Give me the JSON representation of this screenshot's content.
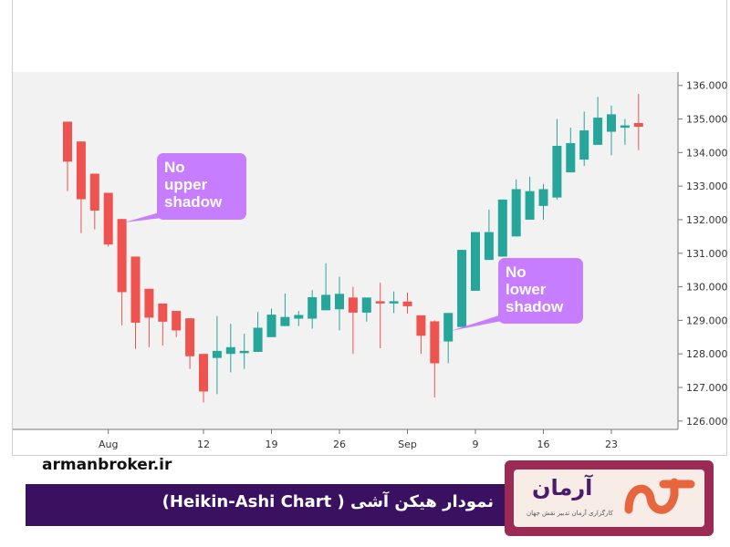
{
  "chart_data": {
    "type": "candlestick",
    "subtype": "heikin-ashi",
    "x_tick_labels": [
      "Aug",
      "12",
      "19",
      "26",
      "Sep",
      "9",
      "16",
      "23"
    ],
    "y_ticks": [
      "126.000",
      "127.000",
      "128.000",
      "129.000",
      "130.000",
      "131.000",
      "132.000",
      "133.000",
      "134.000",
      "135.000",
      "136.000"
    ],
    "ylim": [
      125.75,
      136.4
    ],
    "grid": false,
    "colors": {
      "up": "#26a69a",
      "down": "#ef5350",
      "callout": "#c77dff",
      "plot_background": "#f2f2f2"
    },
    "candles": [
      {
        "open": 134.92,
        "close": 133.73,
        "high": 134.92,
        "low": 132.85,
        "dir": "down"
      },
      {
        "open": 134.33,
        "close": 132.61,
        "high": 134.33,
        "low": 131.6,
        "dir": "down"
      },
      {
        "open": 133.37,
        "close": 132.27,
        "high": 133.37,
        "low": 131.71,
        "dir": "down"
      },
      {
        "open": 132.8,
        "close": 131.26,
        "high": 132.8,
        "low": 131.2,
        "dir": "down"
      },
      {
        "open": 132.02,
        "close": 129.84,
        "high": 132.02,
        "low": 128.85,
        "dir": "down"
      },
      {
        "open": 130.9,
        "close": 128.93,
        "high": 130.9,
        "low": 128.15,
        "dir": "down"
      },
      {
        "open": 129.94,
        "close": 129.08,
        "high": 129.94,
        "low": 128.2,
        "dir": "down"
      },
      {
        "open": 129.5,
        "close": 128.96,
        "high": 129.5,
        "low": 128.25,
        "dir": "down"
      },
      {
        "open": 129.28,
        "close": 128.7,
        "high": 129.28,
        "low": 128.5,
        "dir": "down"
      },
      {
        "open": 129.06,
        "close": 127.93,
        "high": 129.06,
        "low": 127.55,
        "dir": "down"
      },
      {
        "open": 128.0,
        "close": 126.88,
        "high": 128.0,
        "low": 126.55,
        "dir": "down"
      },
      {
        "open": 127.88,
        "close": 128.09,
        "high": 129.13,
        "low": 126.8,
        "dir": "up"
      },
      {
        "open": 128.0,
        "close": 128.2,
        "high": 128.9,
        "low": 127.45,
        "dir": "up"
      },
      {
        "open": 128.06,
        "close": 128.09,
        "high": 128.6,
        "low": 127.55,
        "dir": "up"
      },
      {
        "open": 128.06,
        "close": 128.78,
        "high": 129.25,
        "low": 128.06,
        "dir": "up"
      },
      {
        "open": 128.5,
        "close": 129.17,
        "high": 129.35,
        "low": 128.5,
        "dir": "up"
      },
      {
        "open": 128.83,
        "close": 129.1,
        "high": 129.8,
        "low": 128.83,
        "dir": "up"
      },
      {
        "open": 129.16,
        "close": 129.05,
        "high": 129.28,
        "low": 128.83,
        "dir": "up"
      },
      {
        "open": 129.05,
        "close": 129.69,
        "high": 129.9,
        "low": 128.75,
        "dir": "up"
      },
      {
        "open": 129.3,
        "close": 129.76,
        "high": 130.7,
        "low": 129.3,
        "dir": "up"
      },
      {
        "open": 129.33,
        "close": 129.79,
        "high": 130.3,
        "low": 128.7,
        "dir": "up"
      },
      {
        "open": 129.68,
        "close": 129.23,
        "high": 130.0,
        "low": 128.0,
        "dir": "down"
      },
      {
        "open": 129.68,
        "close": 129.23,
        "high": 129.68,
        "low": 128.96,
        "dir": "up"
      },
      {
        "open": 129.56,
        "close": 129.57,
        "high": 130.12,
        "low": 128.17,
        "dir": "down"
      },
      {
        "open": 129.56,
        "close": 129.57,
        "high": 129.86,
        "low": 129.22,
        "dir": "up"
      },
      {
        "open": 129.56,
        "close": 129.42,
        "high": 129.83,
        "low": 129.2,
        "dir": "down"
      },
      {
        "open": 129.15,
        "close": 128.54,
        "high": 129.15,
        "low": 128.0,
        "dir": "down"
      },
      {
        "open": 128.97,
        "close": 127.72,
        "high": 129.0,
        "low": 126.7,
        "dir": "down"
      },
      {
        "open": 128.37,
        "close": 129.22,
        "high": 129.22,
        "low": 127.72,
        "dir": "up"
      },
      {
        "open": 128.8,
        "close": 131.1,
        "high": 131.1,
        "low": 128.8,
        "dir": "up"
      },
      {
        "open": 129.88,
        "close": 131.63,
        "high": 131.63,
        "low": 129.88,
        "dir": "up"
      },
      {
        "open": 130.8,
        "close": 131.63,
        "high": 132.3,
        "low": 130.8,
        "dir": "up"
      },
      {
        "open": 130.9,
        "close": 132.6,
        "high": 132.6,
        "low": 130.9,
        "dir": "up"
      },
      {
        "open": 131.5,
        "close": 132.91,
        "high": 133.2,
        "low": 131.5,
        "dir": "up"
      },
      {
        "open": 132.0,
        "close": 132.85,
        "high": 133.28,
        "low": 132.0,
        "dir": "up"
      },
      {
        "open": 132.41,
        "close": 132.91,
        "high": 133.06,
        "low": 132.0,
        "dir": "up"
      },
      {
        "open": 132.66,
        "close": 134.2,
        "high": 135.0,
        "low": 132.6,
        "dir": "up"
      },
      {
        "open": 133.41,
        "close": 134.28,
        "high": 134.74,
        "low": 133.41,
        "dir": "up"
      },
      {
        "open": 133.79,
        "close": 134.66,
        "high": 135.22,
        "low": 133.6,
        "dir": "up"
      },
      {
        "open": 134.23,
        "close": 135.04,
        "high": 135.66,
        "low": 134.23,
        "dir": "up"
      },
      {
        "open": 134.62,
        "close": 135.14,
        "high": 135.4,
        "low": 133.92,
        "dir": "up"
      },
      {
        "open": 134.74,
        "close": 134.81,
        "high": 135.0,
        "low": 134.23,
        "dir": "up"
      },
      {
        "open": 134.88,
        "close": 134.77,
        "high": 135.75,
        "low": 134.07,
        "dir": "down"
      }
    ],
    "annotations": [
      {
        "lines": [
          "No",
          "upper",
          "shadow"
        ]
      },
      {
        "lines": [
          "No",
          "lower",
          "shadow"
        ]
      }
    ]
  },
  "footer": {
    "website": "armanbroker.ir",
    "banner_title": "نمودار هیکن آشی ( Heikin-Ashi Chart)",
    "logo_name": "آرمان",
    "logo_tagline": "کارگزاری آرمان تدبیر نقش جهان"
  }
}
